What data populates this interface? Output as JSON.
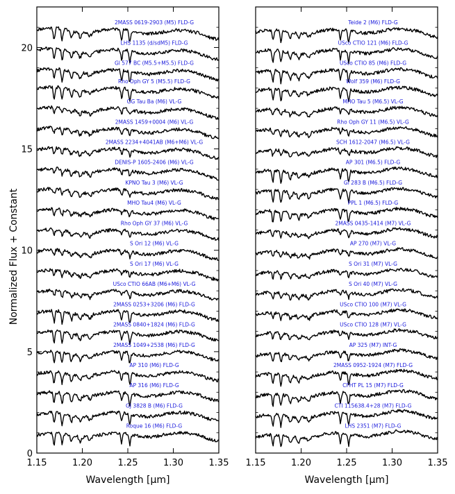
{
  "chart_data": [
    {
      "type": "line",
      "panel": "left",
      "xlabel": "Wavelength [μm]",
      "ylabel": "Normalized Flux + Constant",
      "xlim": [
        1.15,
        1.35
      ],
      "ylim": [
        0,
        22
      ],
      "xticks": [
        "1.15",
        "1.20",
        "1.25",
        "1.30",
        "1.35"
      ],
      "yticks": [
        "0",
        "5",
        "10",
        "15",
        "20"
      ],
      "series": [
        {
          "name": "2MASS 0619-2903 (M5) FLD-G",
          "offset": 20.8,
          "class": "fld"
        },
        {
          "name": "LHS 1135 (d/sdM5) FLD-G",
          "offset": 19.8,
          "class": "fld"
        },
        {
          "name": "Gl 577 BC (M5.5+M5.5) FLD-G",
          "offset": 18.8,
          "class": "fld"
        },
        {
          "name": "Rho Oph GY 5 (M5.5) FLD-G",
          "offset": 17.9,
          "class": "fld"
        },
        {
          "name": "GG Tau Ba (M6) VL-G",
          "offset": 16.9,
          "class": "vl"
        },
        {
          "name": "2MASS 1459+0004 (M6) VL-G",
          "offset": 15.9,
          "class": "vl"
        },
        {
          "name": "2MASS 2234+4041AB (M6+M6) VL-G",
          "offset": 14.9,
          "class": "vl"
        },
        {
          "name": "DENIS-P 1605-2406 (M6) VL-G",
          "offset": 13.9,
          "class": "vl"
        },
        {
          "name": "KPNO Tau 3 (M6) VL-G",
          "offset": 12.9,
          "class": "vl"
        },
        {
          "name": "MHO Tau4 (M6) VL-G",
          "offset": 11.9,
          "class": "vl"
        },
        {
          "name": "Rho Oph GY 37 (M6) VL-G",
          "offset": 10.9,
          "class": "vl"
        },
        {
          "name": "S Ori 12 (M6) VL-G",
          "offset": 9.9,
          "class": "vl"
        },
        {
          "name": "S Ori 17 (M6) VL-G",
          "offset": 8.9,
          "class": "vl"
        },
        {
          "name": "USco CTIO 66AB (M6+M6) VL-G",
          "offset": 7.9,
          "class": "vl"
        },
        {
          "name": "2MASS 0253+3206 (M6) FLD-G",
          "offset": 6.9,
          "class": "fld"
        },
        {
          "name": "2MASS 0840+1824 (M6) FLD-G",
          "offset": 5.9,
          "class": "fld"
        },
        {
          "name": "2MASS 1049+2538 (M6) FLD-G",
          "offset": 4.9,
          "class": "fld"
        },
        {
          "name": "AP 310 (M6) FLD-G",
          "offset": 3.9,
          "class": "fld"
        },
        {
          "name": "AP 316 (M6) FLD-G",
          "offset": 2.9,
          "class": "fld"
        },
        {
          "name": "GJ 3828 B (M6) FLD-G",
          "offset": 1.9,
          "class": "fld"
        },
        {
          "name": "Roque 16 (M6) FLD-G",
          "offset": 0.9,
          "class": "fld"
        }
      ]
    },
    {
      "type": "line",
      "panel": "right",
      "xlabel": "Wavelength [μm]",
      "ylabel": "",
      "xlim": [
        1.15,
        1.35
      ],
      "ylim": [
        0,
        22
      ],
      "xticks": [
        "1.15",
        "1.20",
        "1.25",
        "1.30",
        "1.35"
      ],
      "yticks": [],
      "series": [
        {
          "name": "Teide 2 (M6) FLD-G",
          "offset": 20.8,
          "class": "fld"
        },
        {
          "name": "USco CTIO 121 (M6) FLD-G",
          "offset": 19.8,
          "class": "fld"
        },
        {
          "name": "USco CTIO 85 (M6) FLD-G",
          "offset": 18.8,
          "class": "fld"
        },
        {
          "name": "Wolf 359 (M6) FLD-G",
          "offset": 17.9,
          "class": "fld"
        },
        {
          "name": "MHO Tau 5 (M6.5) VL-G",
          "offset": 16.9,
          "class": "vl"
        },
        {
          "name": "Rho Oph GY 11 (M6.5) VL-G",
          "offset": 15.9,
          "class": "vl"
        },
        {
          "name": "SCH 1612-2047 (M6.5) VL-G",
          "offset": 14.9,
          "class": "vl"
        },
        {
          "name": "AP 301 (M6.5) FLD-G",
          "offset": 13.9,
          "class": "fld"
        },
        {
          "name": "Gl 283 B (M6.5) FLD-G",
          "offset": 12.9,
          "class": "fld"
        },
        {
          "name": "PPL 1 (M6.5) FLD-G",
          "offset": 11.9,
          "class": "fld"
        },
        {
          "name": "2MASS 0435-1414 (M7) VL-G",
          "offset": 10.9,
          "class": "vl"
        },
        {
          "name": "AP 270 (M7) VL-G",
          "offset": 9.9,
          "class": "vl"
        },
        {
          "name": "S Ori 31 (M7) VL-G",
          "offset": 8.9,
          "class": "vl"
        },
        {
          "name": "S Ori 40 (M7) VL-G",
          "offset": 7.9,
          "class": "vl"
        },
        {
          "name": "USco CTIO 100 (M7) VL-G",
          "offset": 6.9,
          "class": "vl"
        },
        {
          "name": "USco CTIO 128 (M7) VL-G",
          "offset": 5.9,
          "class": "vl"
        },
        {
          "name": "AP 325 (M7) INT-G",
          "offset": 4.9,
          "class": "int"
        },
        {
          "name": "2MASS 0952-1924 (M7) FLD-G",
          "offset": 3.9,
          "class": "fld"
        },
        {
          "name": "CFHT PL 15 (M7) FLD-G",
          "offset": 2.9,
          "class": "fld"
        },
        {
          "name": "CTI 115638.4+28 (M7) FLD-G",
          "offset": 1.9,
          "class": "fld"
        },
        {
          "name": "LHS 2351 (M7) FLD-G",
          "offset": 0.9,
          "class": "fld"
        }
      ]
    }
  ],
  "colors": {
    "label": "#1a1adc",
    "line": "#000000",
    "frame": "#000000"
  }
}
